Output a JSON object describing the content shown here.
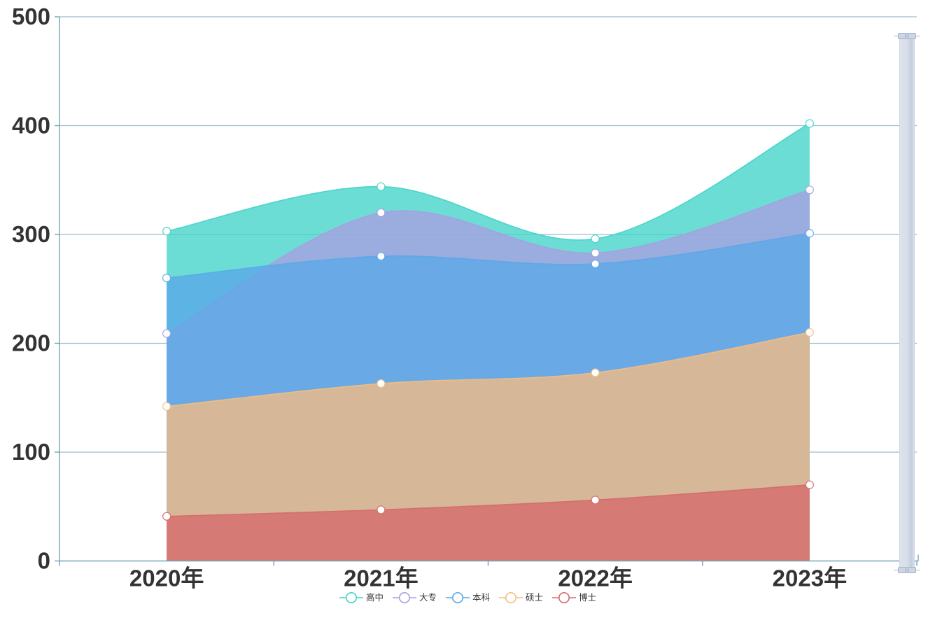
{
  "chart_data": {
    "type": "area",
    "title": "",
    "xlabel": "",
    "ylabel": "",
    "smooth": true,
    "stacked": false,
    "grid": true,
    "legend_position": "bottom",
    "categories": [
      "2020年",
      "2021年",
      "2022年",
      "2023年"
    ],
    "series": [
      {
        "id": "high-school",
        "name": "高中",
        "color": "#41d3c9",
        "values": [
          303,
          344,
          296,
          402
        ]
      },
      {
        "id": "associate",
        "name": "大专",
        "color": "#a99ee0",
        "values": [
          209,
          320,
          283,
          341
        ]
      },
      {
        "id": "bachelor",
        "name": "本科",
        "color": "#5aa8e8",
        "values": [
          260,
          280,
          273,
          301
        ]
      },
      {
        "id": "master",
        "name": "硕士",
        "color": "#f5bd81",
        "values": [
          142,
          163,
          173,
          210
        ]
      },
      {
        "id": "doctor",
        "name": "博士",
        "color": "#d5696c",
        "values": [
          41,
          47,
          56,
          70
        ]
      }
    ],
    "ylim": [
      0,
      500
    ],
    "y_ticks": [
      0,
      100,
      200,
      300,
      400,
      500
    ]
  },
  "styles": {
    "background": "#ffffff",
    "axis_line_color": "#76a4b5",
    "grid_line_color": "#98bfc9",
    "axis_label_color": "#333333",
    "legend_text_color": "#333333",
    "area_opacity": 0.78,
    "point_fill": "#ffffff"
  },
  "data_zoom": {
    "orientation": "vertical",
    "position": "right",
    "range_start": "100%",
    "range_end": "0%"
  }
}
